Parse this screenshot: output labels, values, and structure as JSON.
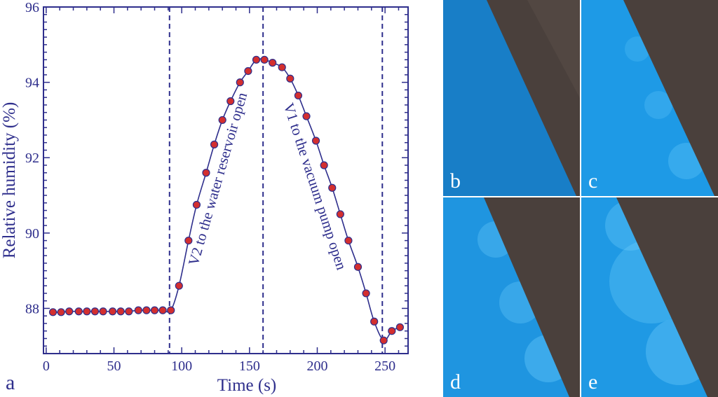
{
  "figure": {
    "panel_a_label": "a",
    "photo_panels": [
      {
        "label": "b"
      },
      {
        "label": "c"
      },
      {
        "label": "d"
      },
      {
        "label": "e"
      }
    ],
    "colors": {
      "axis": "#2e2e8c",
      "marker_fill": "#d32f2f",
      "photo_water": "#1e8fd9",
      "photo_steel": "#4a403c"
    }
  },
  "chart_data": {
    "type": "line",
    "title": "",
    "xlabel": "Time (s)",
    "ylabel": "Relative humidity (%)",
    "xlim": [
      -2,
      267
    ],
    "ylim": [
      86.8,
      96
    ],
    "xticks": [
      0,
      50,
      100,
      150,
      200,
      250
    ],
    "yticks": [
      88,
      90,
      92,
      94,
      96
    ],
    "grid": false,
    "series": [
      {
        "marker": "circle",
        "x": [
          5,
          11,
          17,
          24,
          30,
          36,
          42,
          49,
          55,
          61,
          68,
          74,
          80,
          86,
          92,
          98,
          105,
          111,
          118,
          124,
          130,
          136,
          143,
          149,
          155,
          161,
          167,
          174,
          180,
          186,
          192,
          199,
          205,
          211,
          217,
          223,
          230,
          236,
          242,
          249,
          255,
          261
        ],
        "y": [
          87.9,
          87.9,
          87.92,
          87.92,
          87.92,
          87.92,
          87.92,
          87.92,
          87.92,
          87.92,
          87.95,
          87.95,
          87.95,
          87.95,
          87.95,
          88.6,
          89.8,
          90.75,
          91.6,
          92.35,
          93.0,
          93.5,
          94.0,
          94.3,
          94.6,
          94.6,
          94.52,
          94.4,
          94.1,
          93.65,
          93.1,
          92.45,
          91.8,
          91.2,
          90.5,
          89.8,
          89.1,
          88.4,
          87.65,
          87.15,
          87.4,
          87.5
        ]
      }
    ],
    "event_lines_x": [
      91,
      160,
      248
    ],
    "annotations": [
      {
        "text": "V2 to the water reservoir open",
        "x": 130,
        "y": 91.4,
        "rotation": -74
      },
      {
        "text": "V1 to the vacuum pump open",
        "x": 195,
        "y": 91.2,
        "rotation": 72
      }
    ]
  }
}
